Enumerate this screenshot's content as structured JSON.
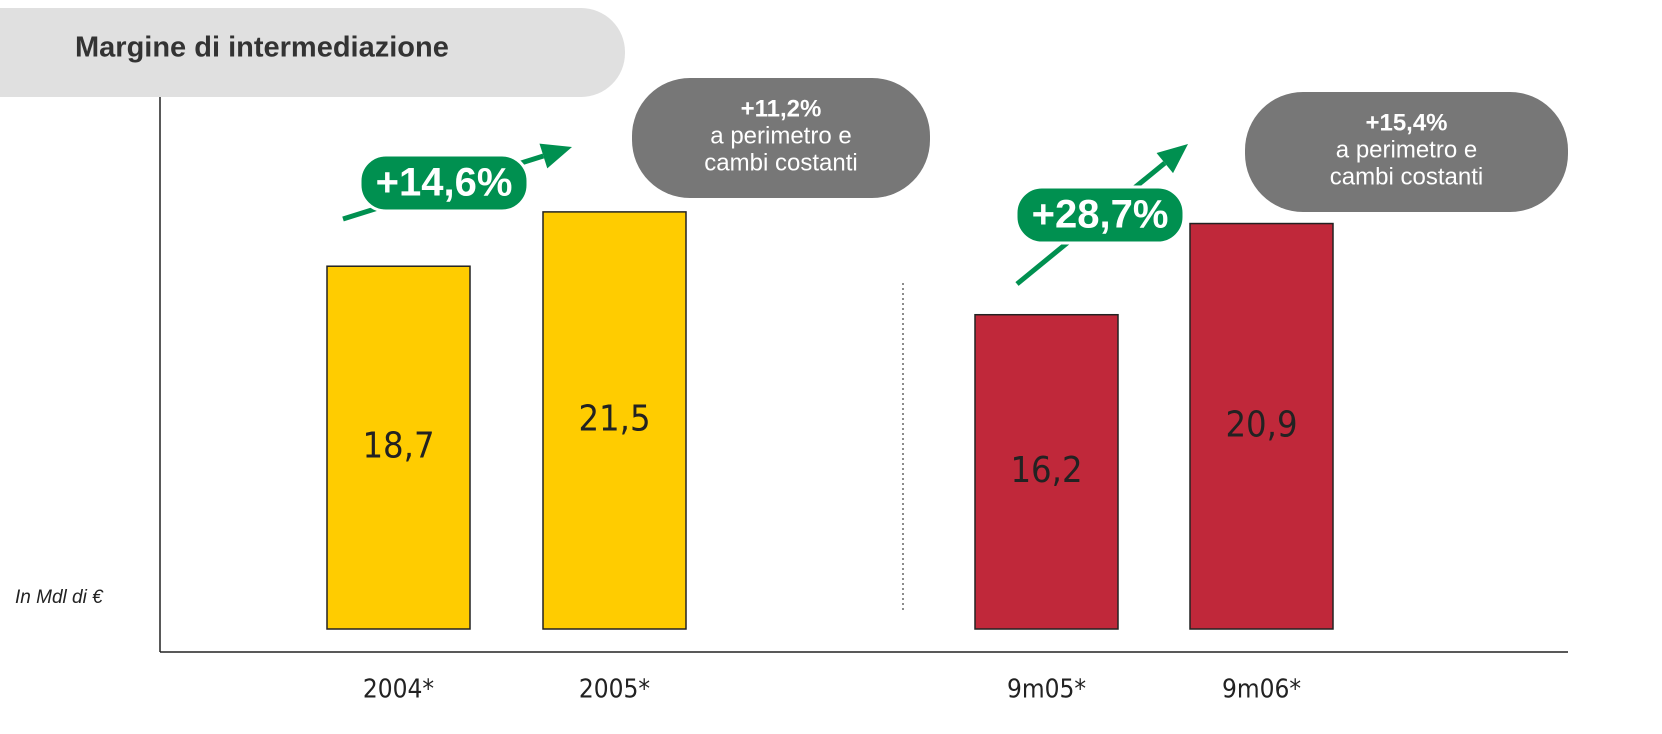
{
  "chart_data": {
    "type": "bar",
    "title": "Margine di intermediazione",
    "unit_label": "In Mdl di €",
    "categories": [
      "2004*",
      "2005*",
      "9m05*",
      "9m06*"
    ],
    "values": [
      18.7,
      21.5,
      16.2,
      20.9
    ],
    "value_labels": [
      "18,7",
      "21,5",
      "16,2",
      "20,9"
    ],
    "colors": [
      "#ffcc00",
      "#ffcc00",
      "#c0283a",
      "#c0283a"
    ],
    "ylim": [
      0,
      30
    ],
    "growth": [
      "+14,6%",
      "+28,7%"
    ],
    "growth_color": "#009050",
    "notes": [
      {
        "lines": [
          "+11,2%",
          "a perimetro e",
          "cambi costanti"
        ]
      },
      {
        "lines": [
          "+15,4%",
          "a perimetro e",
          "cambi costanti"
        ]
      }
    ]
  }
}
